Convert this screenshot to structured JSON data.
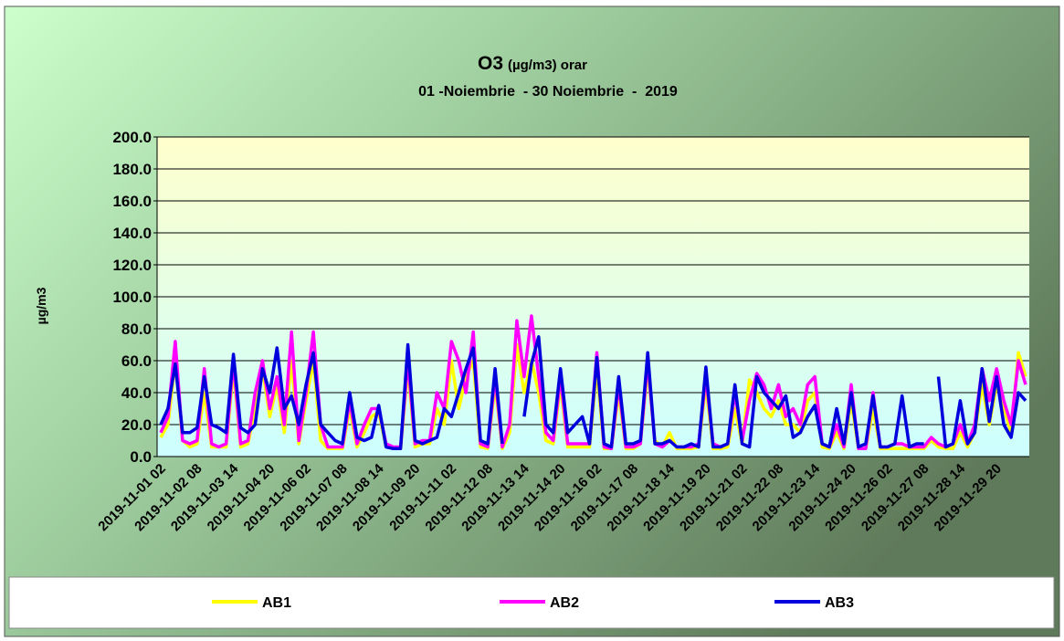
{
  "chart_data": {
    "type": "line",
    "title": "O3",
    "title_note": "(µg/m3) orar",
    "subtitle": "01 -Noiembrie  - 30 Noiembrie  -  2019",
    "y_label": "µg/m3",
    "categories": [
      "2019-11-01 02",
      null,
      null,
      null,
      null,
      "2019-11-02 08",
      null,
      null,
      null,
      null,
      "2019-11-03 14",
      null,
      null,
      null,
      null,
      "2019-11-04 20",
      null,
      null,
      null,
      null,
      "2019-11-06 02",
      null,
      null,
      null,
      null,
      "2019-11-07 08",
      null,
      null,
      null,
      null,
      "2019-11-08 14",
      null,
      null,
      null,
      null,
      "2019-11-09 20",
      null,
      null,
      null,
      null,
      "2019-11-11 02",
      null,
      null,
      null,
      null,
      "2019-11-12 08",
      null,
      null,
      null,
      null,
      "2019-11-13 14",
      null,
      null,
      null,
      null,
      "2019-11-14 20",
      null,
      null,
      null,
      null,
      "2019-11-16 02",
      null,
      null,
      null,
      null,
      "2019-11-17 08",
      null,
      null,
      null,
      null,
      "2019-11-18 14",
      null,
      null,
      null,
      null,
      "2019-11-19 20",
      null,
      null,
      null,
      null,
      "2019-11-21 02",
      null,
      null,
      null,
      null,
      "2019-11-22 08",
      null,
      null,
      null,
      null,
      "2019-11-23 14",
      null,
      null,
      null,
      null,
      "2019-11-24 20",
      null,
      null,
      null,
      null,
      "2019-11-26 02",
      null,
      null,
      null,
      null,
      "2019-11-27 08",
      null,
      null,
      null,
      null,
      "2019-11-28 14",
      null,
      null,
      null,
      null,
      "2019-11-29 20",
      null,
      null,
      null,
      null
    ],
    "series": [
      {
        "name": "AB1",
        "color": "#ffff00",
        "values": [
          12,
          20,
          60,
          10,
          6,
          8,
          40,
          6,
          6,
          6,
          55,
          6,
          8,
          30,
          55,
          25,
          45,
          15,
          60,
          8,
          35,
          60,
          10,
          5,
          5,
          5,
          30,
          6,
          15,
          25,
          28,
          6,
          5,
          5,
          55,
          6,
          8,
          8,
          30,
          20,
          60,
          30,
          50,
          60,
          6,
          5,
          45,
          5,
          15,
          70,
          40,
          60,
          40,
          10,
          8,
          45,
          6,
          6,
          6,
          6,
          55,
          5,
          5,
          40,
          5,
          5,
          8,
          55,
          10,
          6,
          15,
          5,
          5,
          5,
          6,
          45,
          5,
          5,
          6,
          30,
          8,
          48,
          40,
          30,
          25,
          35,
          20,
          20,
          15,
          35,
          40,
          6,
          5,
          15,
          5,
          35,
          5,
          5,
          30,
          5,
          5,
          5,
          5,
          5,
          5,
          5,
          10,
          6,
          5,
          5,
          15,
          6,
          15,
          45,
          20,
          45,
          30,
          15,
          65,
          50
        ]
      },
      {
        "name": "AB2",
        "color": "#ff00ff",
        "values": [
          15,
          25,
          72,
          10,
          8,
          10,
          55,
          8,
          6,
          8,
          60,
          8,
          10,
          40,
          60,
          30,
          50,
          20,
          78,
          10,
          40,
          78,
          20,
          6,
          6,
          6,
          35,
          8,
          20,
          30,
          30,
          8,
          6,
          6,
          60,
          8,
          10,
          10,
          40,
          30,
          72,
          60,
          40,
          78,
          8,
          6,
          50,
          6,
          20,
          85,
          50,
          88,
          50,
          15,
          10,
          50,
          8,
          8,
          8,
          8,
          65,
          6,
          5,
          45,
          6,
          6,
          8,
          60,
          8,
          6,
          10,
          6,
          6,
          6,
          8,
          50,
          8,
          6,
          8,
          40,
          10,
          35,
          52,
          45,
          30,
          45,
          25,
          30,
          20,
          45,
          50,
          8,
          6,
          20,
          6,
          45,
          5,
          5,
          40,
          6,
          6,
          8,
          8,
          6,
          6,
          6,
          12,
          8,
          6,
          8,
          20,
          8,
          20,
          55,
          35,
          55,
          35,
          20,
          60,
          45
        ]
      },
      {
        "name": "AB3",
        "color": "#0000dd",
        "values": [
          20,
          30,
          58,
          15,
          15,
          18,
          50,
          20,
          18,
          15,
          64,
          18,
          15,
          20,
          55,
          40,
          68,
          30,
          38,
          20,
          45,
          65,
          20,
          15,
          10,
          8,
          40,
          12,
          10,
          12,
          32,
          6,
          5,
          5,
          70,
          10,
          8,
          10,
          12,
          30,
          25,
          40,
          55,
          68,
          10,
          8,
          55,
          8,
          null,
          null,
          25,
          58,
          75,
          20,
          15,
          55,
          15,
          20,
          25,
          8,
          62,
          8,
          6,
          50,
          8,
          8,
          10,
          65,
          8,
          8,
          10,
          6,
          6,
          8,
          6,
          56,
          6,
          6,
          8,
          45,
          8,
          6,
          50,
          40,
          35,
          30,
          38,
          12,
          15,
          25,
          32,
          8,
          6,
          30,
          8,
          40,
          6,
          8,
          38,
          6,
          6,
          8,
          38,
          6,
          8,
          8,
          null,
          50,
          6,
          8,
          35,
          8,
          15,
          55,
          22,
          50,
          20,
          12,
          40,
          35
        ]
      }
    ],
    "ylim": [
      0,
      200
    ],
    "yticks": [
      {
        "value": 0,
        "label": "0.0"
      },
      {
        "value": 20,
        "label": "20.0"
      },
      {
        "value": 40,
        "label": "40.0"
      },
      {
        "value": 60,
        "label": "60.0"
      },
      {
        "value": 80,
        "label": "80.0"
      },
      {
        "value": 100,
        "label": "100.0"
      },
      {
        "value": 120,
        "label": "120.0"
      },
      {
        "value": 140,
        "label": "140.0"
      },
      {
        "value": 160,
        "label": "160.0"
      },
      {
        "value": 180,
        "label": "180.0"
      },
      {
        "value": 200,
        "label": "200.0"
      }
    ],
    "grid": true,
    "legend": "bottom"
  }
}
